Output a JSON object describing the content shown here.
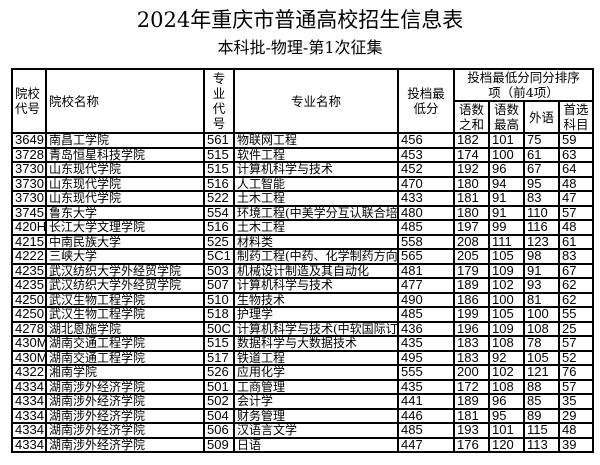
{
  "title": "2024年重庆市普通高校招生信息表",
  "subtitle": "本科批-物理-第1次征集",
  "headers": {
    "school_code": "院校代号",
    "school_name": "院校名称",
    "major_code": "专业代号",
    "major_name": "专业名称",
    "min_score": "投档最低分",
    "tie_group": "投档最低分同分排序项（前4项）",
    "sum_cm": "语数之和",
    "max_cm": "语数最高",
    "foreign": "外语",
    "first_subject": "首选科目"
  },
  "rows": [
    [
      "3649",
      "南昌工学院",
      "561",
      "物联网工程",
      "456",
      "182",
      "101",
      "75",
      "59"
    ],
    [
      "3728",
      "青岛恒星科技学院",
      "515",
      "软件工程",
      "453",
      "174",
      "100",
      "61",
      "63"
    ],
    [
      "3730",
      "山东现代学院",
      "515",
      "计算机科学与技术",
      "452",
      "192",
      "96",
      "67",
      "64"
    ],
    [
      "3730",
      "山东现代学院",
      "516",
      "人工智能",
      "470",
      "180",
      "94",
      "95",
      "48"
    ],
    [
      "3730",
      "山东现代学院",
      "522",
      "土木工程",
      "433",
      "181",
      "91",
      "83",
      "47"
    ],
    [
      "3745",
      "鲁东大学",
      "554",
      "环境工程(中美学分互认联合培",
      "480",
      "180",
      "91",
      "110",
      "57"
    ],
    [
      "420H",
      "长江大学文理学院",
      "516",
      "土木工程",
      "485",
      "197",
      "99",
      "116",
      "48"
    ],
    [
      "4215",
      "中南民族大学",
      "525",
      "材料类",
      "558",
      "208",
      "111",
      "123",
      "61"
    ],
    [
      "4222",
      "三峡大学",
      "5C1",
      "制药工程(中药、化学制药方向",
      "565",
      "205",
      "105",
      "98",
      "83"
    ],
    [
      "4235",
      "武汉纺织大学外经贸学院",
      "503",
      "机械设计制造及其自动化",
      "481",
      "179",
      "109",
      "91",
      "67"
    ],
    [
      "4235",
      "武汉纺织大学外经贸学院",
      "507",
      "计算机科学与技术",
      "477",
      "189",
      "102",
      "93",
      "62"
    ],
    [
      "4250",
      "武汉生物工程学院",
      "510",
      "生物技术",
      "490",
      "186",
      "100",
      "81",
      "62"
    ],
    [
      "4250",
      "武汉生物工程学院",
      "518",
      "护理学",
      "485",
      "199",
      "105",
      "100",
      "55"
    ],
    [
      "4278",
      "湖北恩施学院",
      "50C",
      "计算机科学与技术(中软国际订",
      "436",
      "196",
      "109",
      "108",
      "25"
    ],
    [
      "430M",
      "湖南交通工程学院",
      "515",
      "数据科学与大数据技术",
      "435",
      "183",
      "108",
      "78",
      "57"
    ],
    [
      "430M",
      "湖南交通工程学院",
      "517",
      "铁道工程",
      "495",
      "183",
      "92",
      "105",
      "52"
    ],
    [
      "4322",
      "湘南学院",
      "526",
      "应用化学",
      "555",
      "200",
      "102",
      "121",
      "76"
    ],
    [
      "4334",
      "湖南涉外经济学院",
      "501",
      "工商管理",
      "435",
      "172",
      "108",
      "88",
      "57"
    ],
    [
      "4334",
      "湖南涉外经济学院",
      "502",
      "会计学",
      "441",
      "189",
      "96",
      "85",
      "35"
    ],
    [
      "4334",
      "湖南涉外经济学院",
      "504",
      "财务管理",
      "446",
      "181",
      "95",
      "89",
      "29"
    ],
    [
      "4334",
      "湖南涉外经济学院",
      "506",
      "汉语言文学",
      "485",
      "193",
      "101",
      "115",
      "48"
    ],
    [
      "4334",
      "湖南涉外经济学院",
      "509",
      "日语",
      "447",
      "176",
      "120",
      "113",
      "39"
    ]
  ]
}
